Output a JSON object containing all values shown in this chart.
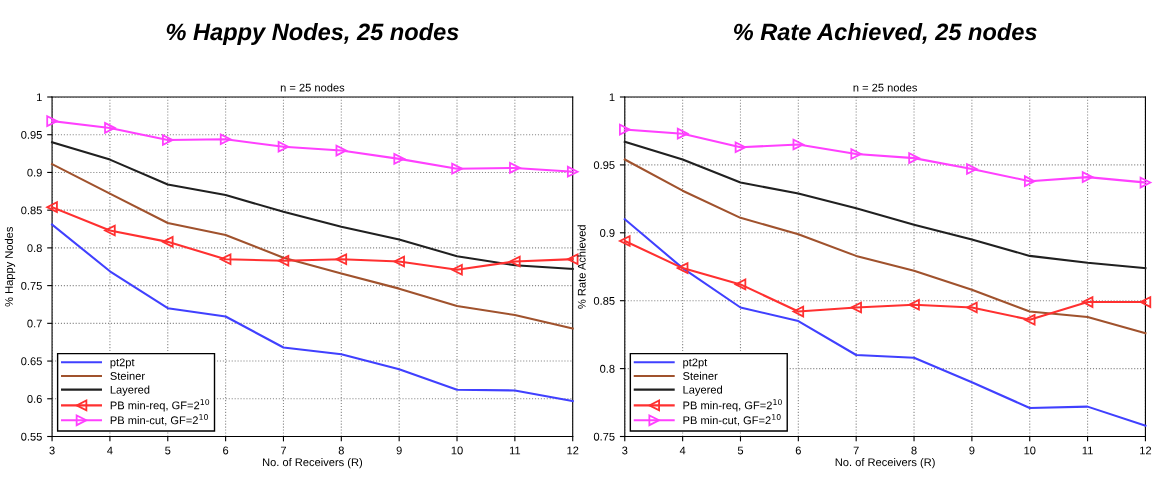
{
  "chart_data": [
    {
      "type": "line",
      "title": "% Happy Nodes, 25 nodes",
      "subtitle": "n = 25 nodes",
      "xlabel": "No. of Receivers (R)",
      "ylabel": "% Happy Nodes",
      "x": [
        3,
        4,
        5,
        6,
        7,
        8,
        9,
        10,
        11,
        12
      ],
      "xlim": [
        3,
        12
      ],
      "xticks": [
        3,
        4,
        5,
        6,
        7,
        8,
        9,
        10,
        11,
        12
      ],
      "ylim": [
        0.55,
        1
      ],
      "yticks": [
        0.55,
        0.6,
        0.65,
        0.7,
        0.75,
        0.8,
        0.85,
        0.9,
        0.95,
        1
      ],
      "grid": true,
      "legend": "bottom left",
      "line_style": "solid",
      "series": [
        {
          "name": "pt2pt",
          "color": "#4040ff",
          "marker": "none",
          "values": [
            0.831,
            0.769,
            0.72,
            0.709,
            0.668,
            0.659,
            0.639,
            0.612,
            0.611,
            0.597
          ]
        },
        {
          "name": "Steiner",
          "color": "#a0522d",
          "marker": "none",
          "values": [
            0.911,
            0.872,
            0.833,
            0.817,
            0.787,
            0.766,
            0.746,
            0.723,
            0.711,
            0.693
          ]
        },
        {
          "name": "Layered",
          "color": "#202020",
          "marker": "none",
          "values": [
            0.94,
            0.917,
            0.884,
            0.87,
            0.848,
            0.828,
            0.811,
            0.789,
            0.777,
            0.772
          ]
        },
        {
          "name": "PB min-req, GF=2$^{10}$",
          "color": "#ff3030",
          "marker": "triangle_left",
          "values": [
            0.854,
            0.823,
            0.808,
            0.785,
            0.783,
            0.785,
            0.782,
            0.771,
            0.782,
            0.785
          ]
        },
        {
          "name": "PB min-cut, GF=2$^{10}$",
          "color": "#ff40ff",
          "marker": "triangle_right",
          "values": [
            0.968,
            0.959,
            0.943,
            0.944,
            0.934,
            0.929,
            0.918,
            0.905,
            0.906,
            0.901
          ]
        }
      ]
    },
    {
      "type": "line",
      "title": "% Rate Achieved, 25 nodes",
      "subtitle": "n = 25 nodes",
      "xlabel": "No. of Receivers (R)",
      "ylabel": "% Rate Achieved",
      "x": [
        3,
        4,
        5,
        6,
        7,
        8,
        9,
        10,
        11,
        12
      ],
      "xlim": [
        3,
        12
      ],
      "xticks": [
        3,
        4,
        5,
        6,
        7,
        8,
        9,
        10,
        11,
        12
      ],
      "ylim": [
        0.75,
        1
      ],
      "yticks": [
        0.75,
        0.8,
        0.85,
        0.9,
        0.95,
        1
      ],
      "grid": true,
      "legend": "bottom left",
      "line_style": "solid",
      "series": [
        {
          "name": "pt2pt",
          "color": "#4040ff",
          "marker": "none",
          "values": [
            0.91,
            0.874,
            0.845,
            0.835,
            0.81,
            0.808,
            0.79,
            0.771,
            0.772,
            0.758
          ]
        },
        {
          "name": "Steiner",
          "color": "#a0522d",
          "marker": "none",
          "values": [
            0.954,
            0.931,
            0.911,
            0.899,
            0.883,
            0.872,
            0.858,
            0.842,
            0.838,
            0.826
          ]
        },
        {
          "name": "Layered",
          "color": "#202020",
          "marker": "none",
          "values": [
            0.967,
            0.954,
            0.937,
            0.929,
            0.918,
            0.906,
            0.895,
            0.883,
            0.878,
            0.874
          ]
        },
        {
          "name": "PB min-req, GF=2$^{10}$",
          "color": "#ff3030",
          "marker": "triangle_left",
          "values": [
            0.894,
            0.874,
            0.862,
            0.842,
            0.845,
            0.847,
            0.845,
            0.836,
            0.849,
            0.849
          ]
        },
        {
          "name": "PB min-cut, GF=2$^{10}$",
          "color": "#ff40ff",
          "marker": "triangle_right",
          "values": [
            0.976,
            0.973,
            0.963,
            0.965,
            0.958,
            0.955,
            0.947,
            0.938,
            0.941,
            0.937
          ]
        }
      ]
    }
  ]
}
